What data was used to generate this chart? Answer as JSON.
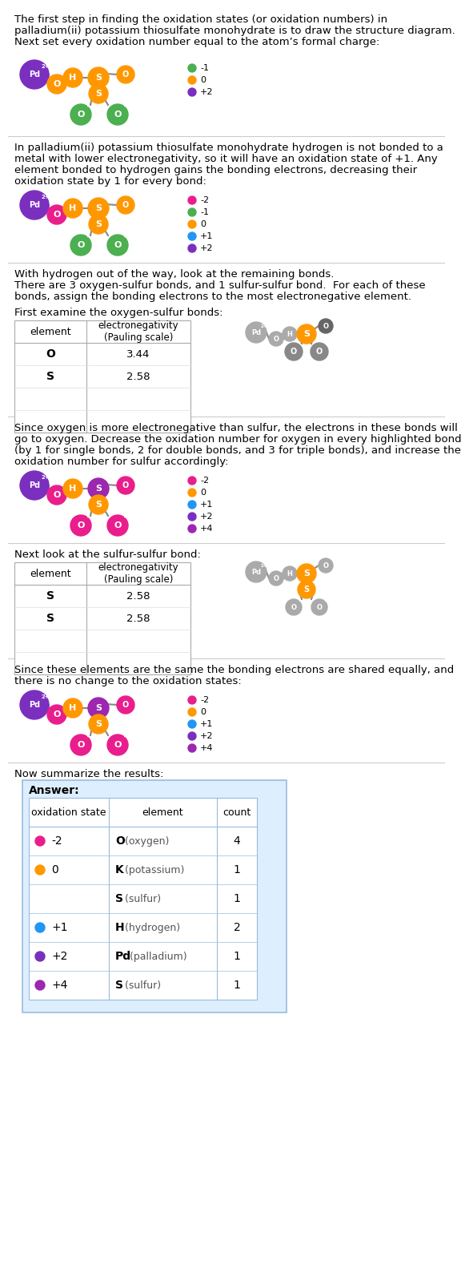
{
  "title_text1": "The first step in finding the oxidation states (or oxidation numbers) in",
  "title_text2": "palladium(ii) potassium thiosulfate monohydrate is to draw the structure diagram.",
  "title_text3": "Next set every oxidation number equal to the atom’s formal charge:",
  "sec1_legend": [
    [
      -1,
      "#4caf50"
    ],
    [
      0,
      "#ff9800"
    ],
    [
      2,
      "#7b2fbe"
    ]
  ],
  "sec2_text1": "In palladium(ii) potassium thiosulfate monohydrate hydrogen is not bonded to a",
  "sec2_text2": "metal with lower electronegativity, so it will have an oxidation state of +1. Any",
  "sec2_text3": "element bonded to hydrogen gains the bonding electrons, decreasing their",
  "sec2_text4": "oxidation state by 1 for every bond:",
  "sec2_legend": [
    [
      -2,
      "#e91e8c"
    ],
    [
      -1,
      "#4caf50"
    ],
    [
      0,
      "#ff9800"
    ],
    [
      1,
      "#2196f3"
    ],
    [
      2,
      "#7b2fbe"
    ]
  ],
  "sec3_text1": "With hydrogen out of the way, look at the remaining bonds.",
  "sec3_text2": "There are 3 oxygen-sulfur bonds, and 1 sulfur-sulfur bond.  For each of these",
  "sec3_text3": "bonds, assign the bonding electrons to the most electronegative element.",
  "sec3_text4": "",
  "sec3_text5": "First examine the oxygen-sulfur bonds:",
  "sec4_text1": "Since oxygen is more electronegative than sulfur, the electrons in these bonds will",
  "sec4_text2": "go to oxygen. Decrease the oxidation number for oxygen in every highlighted bond",
  "sec4_text3": "(by 1 for single bonds, 2 for double bonds, and 3 for triple bonds), and increase the",
  "sec4_text4": "oxidation number for sulfur accordingly:",
  "sec4_legend": [
    [
      -2,
      "#e91e8c"
    ],
    [
      0,
      "#ff9800"
    ],
    [
      1,
      "#2196f3"
    ],
    [
      2,
      "#7b2fbe"
    ],
    [
      4,
      "#9c27b0"
    ]
  ],
  "sec5_text": "Next look at the sulfur-sulfur bond:",
  "sec6_text1": "Since these elements are the same the bonding electrons are shared equally, and",
  "sec6_text2": "there is no change to the oxidation states:",
  "sec6_legend": [
    [
      -2,
      "#e91e8c"
    ],
    [
      0,
      "#ff9800"
    ],
    [
      1,
      "#2196f3"
    ],
    [
      2,
      "#7b2fbe"
    ],
    [
      4,
      "#9c27b0"
    ]
  ],
  "summary_text": "Now summarize the results:",
  "answer_label": "Answer:",
  "answer_headers": [
    "oxidation state",
    "element",
    "count"
  ],
  "answer_rows": [
    [
      "-2",
      "#e91e8c",
      "O",
      "(oxygen)",
      "4"
    ],
    [
      "0",
      "#ff9800",
      "K",
      "(potassium)",
      "1"
    ],
    [
      "",
      null,
      "S",
      "(sulfur)",
      "1"
    ],
    [
      "+1",
      "#2196f3",
      "H",
      "(hydrogen)",
      "2"
    ],
    [
      "+2",
      "#7b2fbe",
      "Pd",
      "(palladium)",
      "1"
    ],
    [
      "+4",
      "#9c27b0",
      "S",
      "(sulfur)",
      "1"
    ]
  ],
  "mol_Pd": "#7b2fbe",
  "mol_K": "#ff9800",
  "mol_H": "#2196f3",
  "mol_O_orange": "#ff9800",
  "mol_O_green": "#4caf50",
  "mol_O_pink": "#e91e8c",
  "mol_S_orange": "#ff9800",
  "mol_S_purple": "#9c27b0",
  "mol_gray": "#aaaaaa",
  "bg": "#ffffff",
  "answer_bg": "#ddeeff",
  "answer_border": "#99bbdd"
}
